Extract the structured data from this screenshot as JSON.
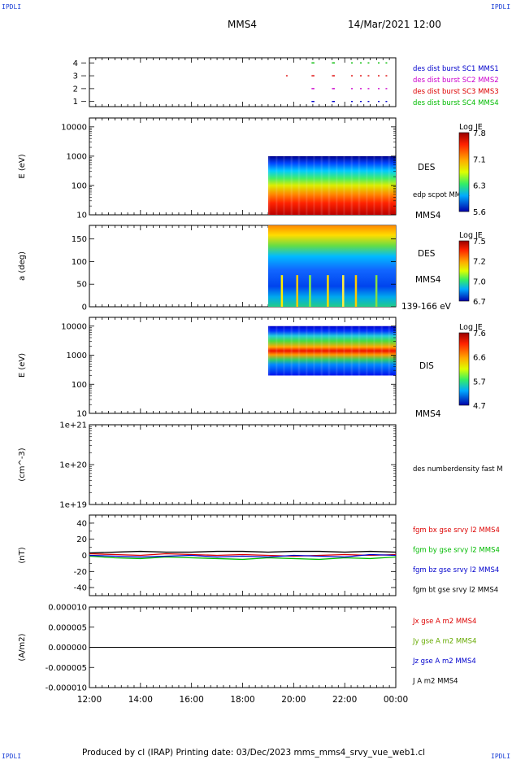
{
  "header": {
    "corner_tl": "IPDLI",
    "corner_tr": "IPDLI",
    "corner_bl": "IPDLI",
    "corner_br": "IPDLI",
    "spacecraft": "MMS4",
    "datetime": "14/Mar/2021 12:00"
  },
  "footer": {
    "text": "Produced by cl (IRAP)   Printing date: 03/Dec/2023   mms_mms4_srvy_vue_web1.cl"
  },
  "chart_data": [
    {
      "type": "scatter",
      "panel": "burst-availability",
      "ylim": [
        0.6,
        4.4
      ],
      "y_ticks": [
        "1",
        "2",
        "3",
        "4"
      ],
      "x_range_hours": [
        12,
        24
      ],
      "x_tick_labels": [
        "12:00",
        "14:00",
        "16:00",
        "18:00",
        "20:00",
        "22:00",
        "00:00"
      ],
      "series": [
        {
          "name": "des dist burst SC1 MMS1",
          "color": "#0000cc",
          "level": 1,
          "x": [
            20.7,
            20.75,
            21.5,
            21.55,
            22.25,
            22.6,
            22.9,
            23.3,
            23.6
          ]
        },
        {
          "name": "des dist burst SC2 MMS2",
          "color": "#cc00cc",
          "level": 2,
          "x": [
            20.7,
            20.75,
            21.5,
            21.55,
            22.25,
            22.6,
            22.9,
            23.3,
            23.6
          ]
        },
        {
          "name": "des dist burst SC3 MMS3",
          "color": "#dd0000",
          "level": 3,
          "x": [
            19.7,
            20.7,
            20.75,
            21.5,
            21.55,
            22.25,
            22.6,
            22.9,
            23.3,
            23.6
          ]
        },
        {
          "name": "des dist burst SC4 MMS4",
          "color": "#00bb00",
          "level": 4,
          "x": [
            20.7,
            20.75,
            21.5,
            21.55,
            22.25,
            22.6,
            22.9,
            23.3,
            23.6
          ]
        }
      ]
    },
    {
      "type": "heatmap",
      "panel": "des-energy-spectrogram",
      "ylabel": "E (eV)",
      "y_scale": "log",
      "ylim": [
        10,
        20000
      ],
      "y_ticks": [
        "10",
        "100",
        "1000",
        "10000"
      ],
      "data_start_hour": 19.0,
      "data_energy_range": [
        10,
        1000
      ],
      "label_right": "DES",
      "overlay_label": "edp scpot MMS4",
      "bottom_label": "MMS4",
      "colorbar": {
        "title": "Log JE",
        "range": [
          5.6,
          7.8
        ],
        "ticks": [
          "7.8",
          "7.1",
          "6.3",
          "5.6"
        ]
      }
    },
    {
      "type": "heatmap",
      "panel": "des-pitch-angle",
      "ylabel": "a (deg)",
      "ylim": [
        0,
        180
      ],
      "y_ticks": [
        "0",
        "50",
        "100",
        "150"
      ],
      "data_start_hour": 19.0,
      "label_right": "DES",
      "label_right2": "MMS4",
      "bottom_label": "139-166 eV",
      "colorbar": {
        "title": "Log JE",
        "range": [
          6.7,
          7.5
        ],
        "ticks": [
          "7.5",
          "7.2",
          "7.0",
          "6.7"
        ]
      }
    },
    {
      "type": "heatmap",
      "panel": "dis-energy-spectrogram",
      "ylabel": "E (eV)",
      "y_scale": "log",
      "ylim": [
        10,
        20000
      ],
      "y_ticks": [
        "10",
        "100",
        "1000",
        "10000"
      ],
      "data_start_hour": 19.0,
      "data_energy_range": [
        200,
        10000
      ],
      "label_right": "DIS",
      "bottom_label": "MMS4",
      "colorbar": {
        "title": "Log JE",
        "range": [
          4.7,
          7.6
        ],
        "ticks": [
          "7.6",
          "6.6",
          "5.7",
          "4.7"
        ]
      }
    },
    {
      "type": "line",
      "panel": "des-numberdensity",
      "ylabel": "(cm^-3)",
      "y_scale": "log",
      "ylim": [
        1e+19,
        1e+21
      ],
      "y_ticks": [
        "1e+19",
        "1e+20",
        "1e+21"
      ],
      "series": [
        {
          "name": "des numberdensity fast M",
          "color": "#000000",
          "values": []
        }
      ]
    },
    {
      "type": "line",
      "panel": "fgm-b-gse",
      "ylabel": "(nT)",
      "ylim": [
        -50,
        50
      ],
      "y_ticks": [
        "40",
        "20",
        "0",
        "-20",
        "-40"
      ],
      "x_range_hours": [
        12,
        24
      ],
      "series": [
        {
          "name": "fgm bx gse srvy l2 MMS4",
          "color": "#dd0000",
          "x": [
            12,
            13,
            14,
            15,
            16,
            17,
            18,
            19,
            20,
            21,
            22,
            23,
            24
          ],
          "values": [
            2,
            1,
            0,
            2,
            1,
            0,
            1,
            0,
            -1,
            0,
            1,
            0,
            1
          ]
        },
        {
          "name": "fgm by gse srvy l2 MMS4",
          "color": "#00bb00",
          "x": [
            12,
            13,
            14,
            15,
            16,
            17,
            18,
            19,
            20,
            21,
            22,
            23,
            24
          ],
          "values": [
            -1,
            -3,
            -4,
            -2,
            -3,
            -4,
            -5,
            -3,
            -4,
            -5,
            -3,
            -4,
            -2
          ]
        },
        {
          "name": "fgm bz gse srvy l2 MMS4",
          "color": "#0000cc",
          "x": [
            12,
            13,
            14,
            15,
            16,
            17,
            18,
            19,
            20,
            21,
            22,
            23,
            24
          ],
          "values": [
            0,
            -1,
            -2,
            -1,
            0,
            -2,
            -1,
            -2,
            0,
            -1,
            -2,
            1,
            0
          ]
        },
        {
          "name": "fgm bt gse srvy l2 MMS4",
          "color": "#000000",
          "x": [
            12,
            13,
            14,
            15,
            16,
            17,
            18,
            19,
            20,
            21,
            22,
            23,
            24
          ],
          "values": [
            3,
            4,
            5,
            4,
            4,
            5,
            5,
            4,
            5,
            5,
            4,
            5,
            4
          ]
        }
      ]
    },
    {
      "type": "line",
      "panel": "current-density",
      "ylabel": "(A/m2)",
      "ylim": [
        -1e-05,
        1e-05
      ],
      "y_ticks": [
        "0.000010",
        "0.000005",
        "0.000000",
        "-0.000005",
        "-0.000010"
      ],
      "x_range_hours": [
        12,
        24
      ],
      "series": [
        {
          "name": "Jx gse A m2 MMS4",
          "color": "#dd0000",
          "x": [
            12,
            24
          ],
          "values": [
            0,
            0
          ]
        },
        {
          "name": "Jy gse A m2 MMS4",
          "color": "#66aa00",
          "x": [
            12,
            24
          ],
          "values": [
            0,
            0
          ]
        },
        {
          "name": "Jz gse A m2 MMS4",
          "color": "#0000cc",
          "x": [
            12,
            24
          ],
          "values": [
            0,
            0
          ]
        },
        {
          "name": "J A m2 MMS4",
          "color": "#000000",
          "x": [
            12,
            24
          ],
          "values": [
            0,
            0
          ]
        }
      ]
    }
  ]
}
